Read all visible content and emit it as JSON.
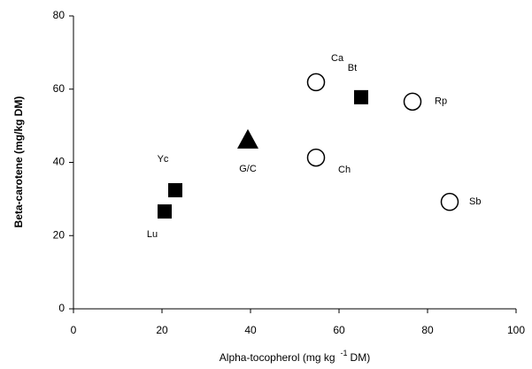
{
  "chart_data": {
    "type": "scatter",
    "ylabel": "Beta-carotene (mg/kg DM)",
    "xlabel": {
      "text": "Alpha-tocopherol (mg kg",
      "sup": "-1",
      "tail": "DM)"
    },
    "x": [
      20.6,
      23,
      39.4,
      54.8,
      54.8,
      65,
      76.6,
      85
    ],
    "values": [
      26.6,
      32.4,
      46.2,
      61.9,
      41.3,
      57.8,
      56.6,
      29.2
    ],
    "point_labels": [
      "Lu",
      "Yc",
      "G/C",
      "Ca",
      "Ch",
      "Bt",
      "Rp",
      "Sb"
    ],
    "markers": [
      "square",
      "square",
      "triangle",
      "circle",
      "circle",
      "square",
      "circle",
      "circle"
    ],
    "color": "#000000",
    "xlim": [
      0,
      100
    ],
    "xticks": [
      0,
      20,
      40,
      60,
      80,
      100
    ],
    "ylim": [
      0,
      80
    ],
    "yticks": [
      0,
      20,
      40,
      60,
      80
    ]
  }
}
